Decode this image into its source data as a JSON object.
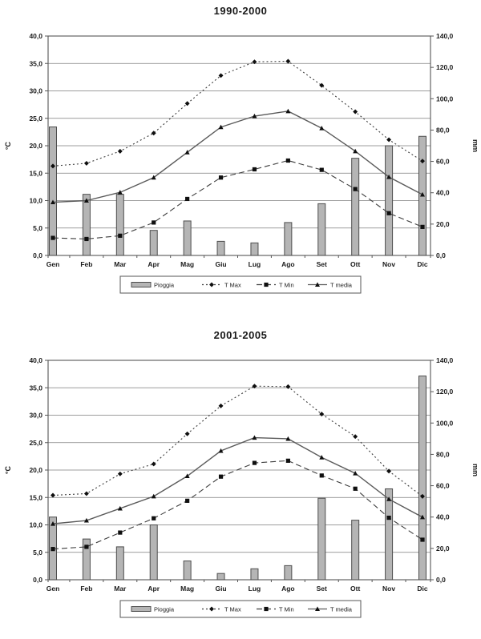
{
  "page": {
    "background": "#ffffff"
  },
  "colors": {
    "bar_fill": "#b5b5b5",
    "bar_stroke": "#4d4d4d",
    "line": "#3d3d3d",
    "line_soft": "#5a5a5a",
    "marker": "#0f0f0f",
    "grid": "#7d7d7d",
    "frame": "#555555",
    "text": "#1a1a1a"
  },
  "chart_data": [
    {
      "type": "bar+line",
      "title": "1990-2000",
      "categories": [
        "Gen",
        "Feb",
        "Mar",
        "Apr",
        "Mag",
        "Giu",
        "Lug",
        "Ago",
        "Set",
        "Ott",
        "Nov",
        "Dic"
      ],
      "bar_series": {
        "name": "Pioggia",
        "axis": "right",
        "unit": "mm",
        "values": [
          82,
          39,
          39,
          16,
          22,
          9,
          8,
          21,
          33,
          62,
          70,
          76
        ]
      },
      "line_series": [
        {
          "name": "T Max",
          "style": "dotted",
          "marker": "diamond",
          "values": [
            16.3,
            16.8,
            19.0,
            22.3,
            27.7,
            32.8,
            35.3,
            35.4,
            31.0,
            26.2,
            21.1,
            17.2
          ]
        },
        {
          "name": "T Min",
          "style": "dashed",
          "marker": "square",
          "values": [
            3.2,
            3.0,
            3.6,
            6.0,
            10.3,
            14.2,
            15.7,
            17.3,
            15.6,
            12.1,
            7.7,
            5.2
          ]
        },
        {
          "name": "T media",
          "style": "solid",
          "marker": "triangle",
          "values": [
            9.7,
            10.0,
            11.5,
            14.2,
            18.8,
            23.4,
            25.4,
            26.3,
            23.2,
            19.0,
            14.3,
            11.1
          ]
        }
      ],
      "y_left": {
        "label": "°C",
        "min": 0,
        "max": 40,
        "step": 5,
        "tick_labels": [
          "0,0",
          "5,0",
          "10,0",
          "15,0",
          "20,0",
          "25,0",
          "30,0",
          "35,0",
          "40,0"
        ]
      },
      "y_right": {
        "label": "mm",
        "min": 0,
        "max": 140,
        "step": 20,
        "tick_labels": [
          "0,0",
          "20,0",
          "40,0",
          "60,0",
          "80,0",
          "100,0",
          "120,0",
          "140,0"
        ]
      },
      "grid": true,
      "legend_position": "bottom"
    },
    {
      "type": "bar+line",
      "title": "2001-2005",
      "categories": [
        "Gen",
        "Feb",
        "Mar",
        "Apr",
        "Mag",
        "Giu",
        "Lug",
        "Ago",
        "Set",
        "Ott",
        "Nov",
        "Dic"
      ],
      "bar_series": {
        "name": "Pioggia",
        "axis": "right",
        "unit": "mm",
        "values": [
          40,
          26,
          21,
          35,
          12,
          4,
          7,
          9,
          52,
          38,
          58,
          130
        ]
      },
      "line_series": [
        {
          "name": "T Max",
          "style": "dotted",
          "marker": "diamond",
          "values": [
            15.4,
            15.7,
            19.3,
            21.1,
            26.6,
            31.7,
            35.3,
            35.2,
            30.2,
            26.1,
            19.8,
            15.2
          ]
        },
        {
          "name": "T Min",
          "style": "dashed",
          "marker": "square",
          "values": [
            5.6,
            6.0,
            8.6,
            11.2,
            14.4,
            18.8,
            21.3,
            21.7,
            19.0,
            16.6,
            11.3,
            7.3
          ]
        },
        {
          "name": "T media",
          "style": "solid",
          "marker": "triangle",
          "values": [
            10.2,
            10.8,
            13.0,
            15.2,
            18.9,
            23.5,
            25.9,
            25.7,
            22.3,
            19.4,
            14.7,
            11.4
          ]
        }
      ],
      "y_left": {
        "label": "°C",
        "min": 0,
        "max": 40,
        "step": 5,
        "tick_labels": [
          "0,0",
          "5,0",
          "10,0",
          "15,0",
          "20,0",
          "25,0",
          "30,0",
          "35,0",
          "40,0"
        ]
      },
      "y_right": {
        "label": "mm",
        "min": 0,
        "max": 140,
        "step": 20,
        "tick_labels": [
          "0,0",
          "20,0",
          "40,0",
          "60,0",
          "80,0",
          "100,0",
          "120,0",
          "140,0"
        ]
      },
      "grid": true,
      "legend_position": "bottom"
    }
  ]
}
